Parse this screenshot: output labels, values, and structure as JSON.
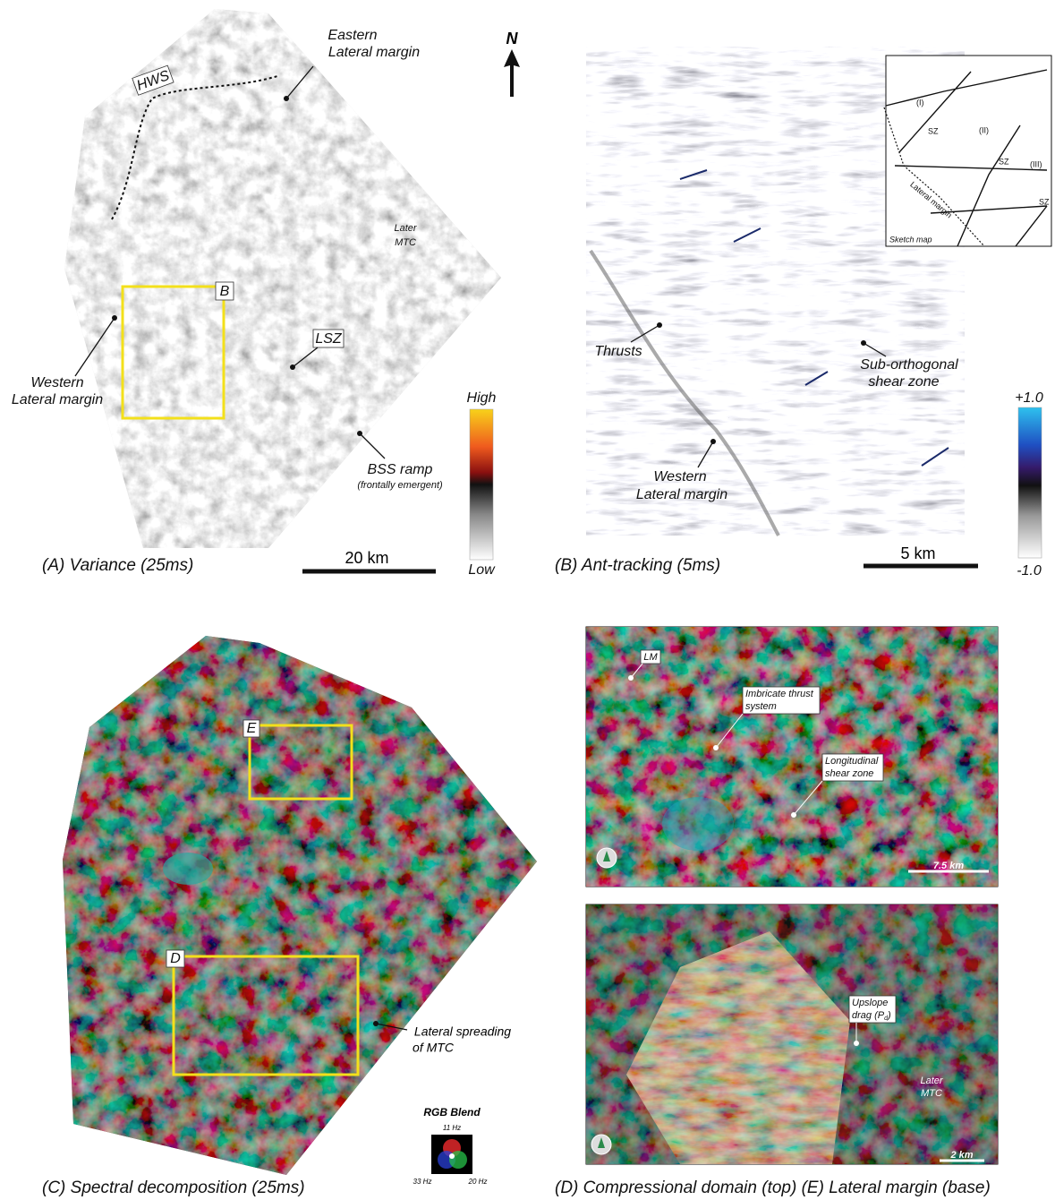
{
  "north": "N",
  "panel_a": {
    "caption": "(A) Variance (25ms)",
    "hws": "HWS",
    "eastern_margin": [
      "Eastern",
      "Lateral margin"
    ],
    "later_mtc": [
      "Later",
      "MTC"
    ],
    "box_b": "B",
    "lsz": "LSZ",
    "western_margin": [
      "Western",
      "Lateral margin"
    ],
    "bss_ramp": "BSS ramp",
    "bss_note": "(frontally emergent)",
    "scale": "20 km",
    "colorbar_high": "High",
    "colorbar_low": "Low"
  },
  "panel_b": {
    "caption": "(B) Ant-tracking (5ms)",
    "thrusts": "Thrusts",
    "shear_zone": [
      "Sub-orthogonal",
      "shear zone"
    ],
    "western_margin": [
      "Western",
      "Lateral margin"
    ],
    "scale": "5 km",
    "colorbar_max": "+1.0",
    "colorbar_min": "-1.0",
    "sketch": {
      "domains": [
        "(I)",
        "(II)",
        "(III)"
      ],
      "sz": [
        "SZ",
        "SZ",
        "SZ"
      ],
      "lateral_margin": "Lateral margin",
      "title": "Sketch map"
    }
  },
  "panel_c": {
    "caption": "(C) Spectral decomposition (25ms)",
    "box_e": "E",
    "box_d": "D",
    "spreading": [
      "Lateral spreading",
      "of MTC"
    ],
    "rgb": {
      "title": "RGB Blend",
      "top": "11 Hz",
      "left": "33 Hz",
      "right": "20 Hz"
    }
  },
  "panel_de": {
    "caption": "(D) Compressional domain (top) (E) Lateral margin (base)",
    "d": {
      "lm": "LM",
      "imbricate": [
        "Imbricate thrust",
        "system"
      ],
      "longitudinal": [
        "Longitudinal",
        "shear zone"
      ],
      "scale": "7.5 km"
    },
    "e": {
      "upslope": [
        "Upslope",
        "drag (P"
      ],
      "upslope_sub": "d",
      "upslope_end": ")",
      "later_mtc": [
        "Later",
        "MTC"
      ],
      "scale": "2 km"
    }
  }
}
